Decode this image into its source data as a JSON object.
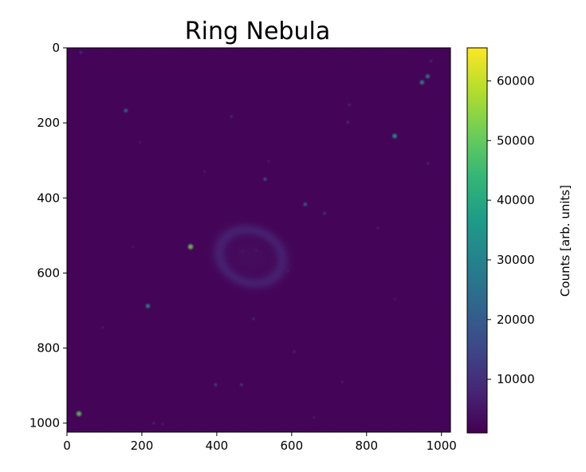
{
  "chart_data": {
    "type": "heatmap",
    "title": "Ring Nebula",
    "x_axis": {
      "lim": [
        0,
        1024
      ],
      "ticks": [
        0,
        200,
        400,
        600,
        800,
        1000
      ],
      "tick_labels": [
        "0",
        "200",
        "400",
        "600",
        "800",
        "1000"
      ]
    },
    "y_axis": {
      "lim": [
        1024,
        0
      ],
      "inverted": true,
      "ticks": [
        0,
        200,
        400,
        600,
        800,
        1000
      ],
      "tick_labels": [
        "0",
        "200",
        "400",
        "600",
        "800",
        "1000"
      ]
    },
    "colorbar": {
      "label": "Counts [arb. units]",
      "colormap": "viridis",
      "range": [
        1000,
        65535
      ],
      "ticks": [
        10000,
        20000,
        30000,
        40000,
        50000,
        60000
      ],
      "tick_labels": [
        "10000",
        "20000",
        "30000",
        "40000",
        "50000",
        "60000"
      ]
    },
    "background_level": 1800,
    "nebula": {
      "center": [
        490,
        555
      ],
      "semi_axes": [
        105,
        85
      ],
      "ring_level": 6500,
      "core_level": 4200
    },
    "stars": [
      {
        "x": 330,
        "y": 530,
        "peak": 52000
      },
      {
        "x": 32,
        "y": 975,
        "peak": 50000
      },
      {
        "x": 875,
        "y": 235,
        "peak": 38000
      },
      {
        "x": 948,
        "y": 92,
        "peak": 34000
      },
      {
        "x": 963,
        "y": 76,
        "peak": 30000
      },
      {
        "x": 216,
        "y": 688,
        "peak": 33000
      },
      {
        "x": 157,
        "y": 167,
        "peak": 24000
      },
      {
        "x": 636,
        "y": 417,
        "peak": 22000
      },
      {
        "x": 529,
        "y": 350,
        "peak": 18000
      },
      {
        "x": 688,
        "y": 441,
        "peak": 12000
      },
      {
        "x": 397,
        "y": 898,
        "peak": 14000
      },
      {
        "x": 466,
        "y": 898,
        "peak": 12000
      },
      {
        "x": 750,
        "y": 198,
        "peak": 10000
      },
      {
        "x": 37,
        "y": 12,
        "peak": 10000
      },
      {
        "x": 439,
        "y": 183,
        "peak": 9000
      },
      {
        "x": 498,
        "y": 722,
        "peak": 9000
      },
      {
        "x": 972,
        "y": 35,
        "peak": 9000
      },
      {
        "x": 607,
        "y": 810,
        "peak": 8000
      },
      {
        "x": 754,
        "y": 152,
        "peak": 8000
      },
      {
        "x": 964,
        "y": 308,
        "peak": 8000
      },
      {
        "x": 367,
        "y": 330,
        "peak": 7000
      },
      {
        "x": 232,
        "y": 1000,
        "peak": 8000
      },
      {
        "x": 255,
        "y": 1003,
        "peak": 7000
      },
      {
        "x": 830,
        "y": 480,
        "peak": 7000
      },
      {
        "x": 95,
        "y": 745,
        "peak": 6500
      },
      {
        "x": 538,
        "y": 302,
        "peak": 6500
      },
      {
        "x": 735,
        "y": 890,
        "peak": 6500
      },
      {
        "x": 660,
        "y": 985,
        "peak": 6500
      },
      {
        "x": 875,
        "y": 670,
        "peak": 6000
      },
      {
        "x": 176,
        "y": 530,
        "peak": 6000
      },
      {
        "x": 195,
        "y": 252,
        "peak": 6000
      },
      {
        "x": 505,
        "y": 540,
        "peak": 6000
      },
      {
        "x": 468,
        "y": 543,
        "peak": 6000
      },
      {
        "x": 590,
        "y": 594,
        "peak": 6000
      }
    ]
  }
}
